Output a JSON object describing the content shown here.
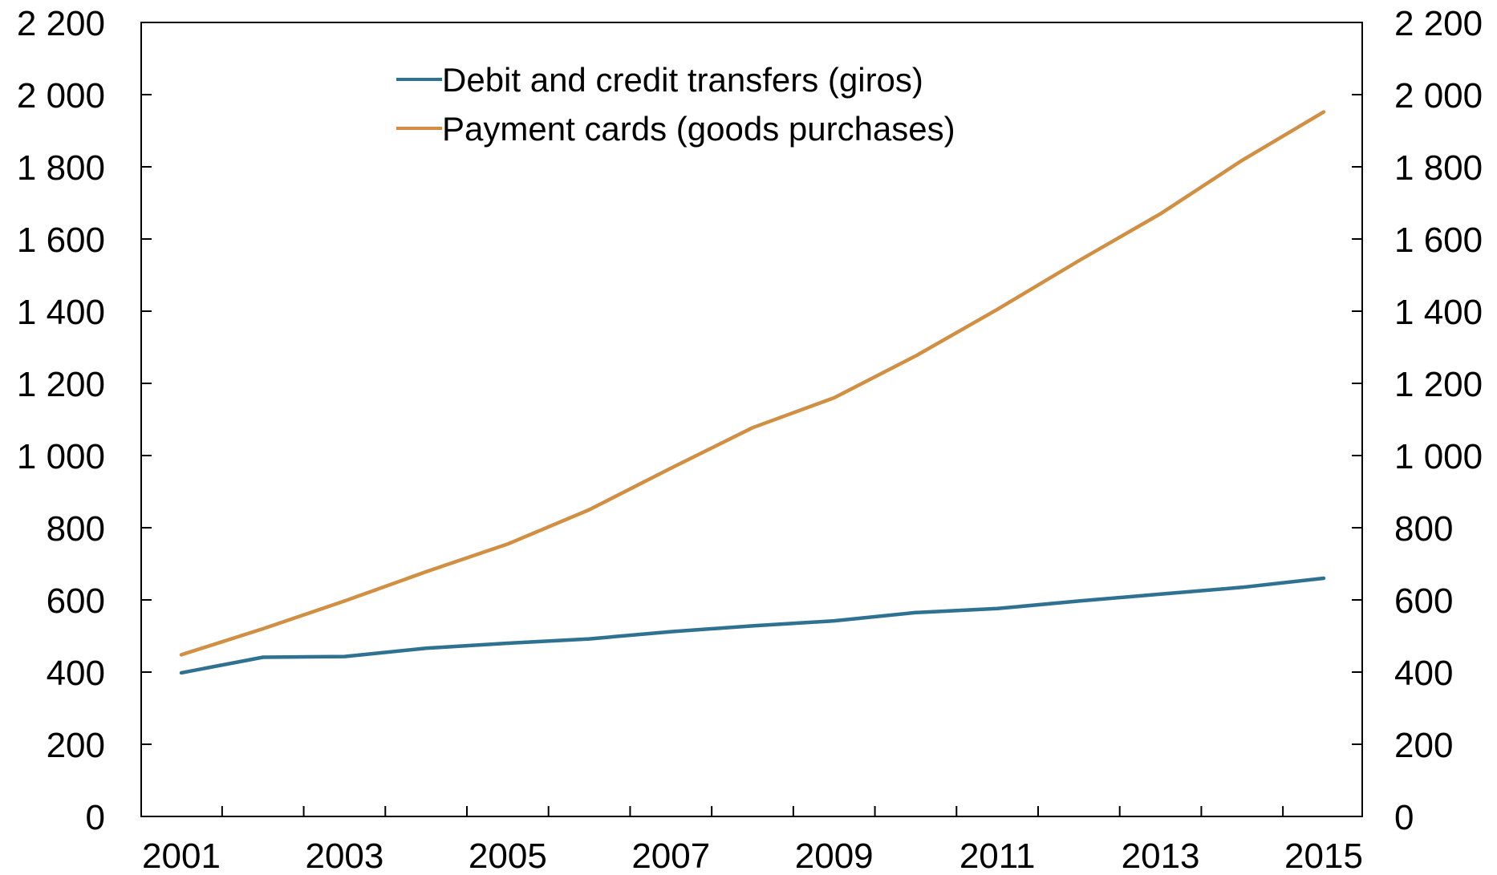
{
  "chart_data": {
    "type": "line",
    "x": [
      2001,
      2002,
      2003,
      2004,
      2005,
      2006,
      2007,
      2008,
      2009,
      2010,
      2011,
      2012,
      2013,
      2014,
      2015
    ],
    "x_tick_labels": [
      "2001",
      "2003",
      "2005",
      "2007",
      "2009",
      "2011",
      "2013",
      "2015"
    ],
    "y_tick_labels": [
      "0",
      "200",
      "400",
      "600",
      "800",
      "1 000",
      "1 200",
      "1 400",
      "1 600",
      "1 800",
      "2 000",
      "2 200"
    ],
    "y2_tick_labels": [
      "0",
      "200",
      "400",
      "600",
      "800",
      "1 000",
      "1 200",
      "1 400",
      "1 600",
      "1 800",
      "2 000",
      "2 200"
    ],
    "ylim": [
      0,
      2200
    ],
    "grid": false,
    "legend_position": "top-center",
    "series": [
      {
        "name": "Debit and credit transfers (giros)",
        "color": "#2e7191",
        "values": [
          398,
          441,
          443,
          466,
          480,
          492,
          512,
          528,
          542,
          565,
          576,
          597,
          616,
          635,
          660
        ]
      },
      {
        "name": "Payment cards (goods purchases)",
        "color": "#d08f42",
        "values": [
          448,
          520,
          597,
          678,
          755,
          850,
          965,
          1077,
          1160,
          1276,
          1405,
          1540,
          1670,
          1818,
          1952
        ]
      }
    ]
  }
}
